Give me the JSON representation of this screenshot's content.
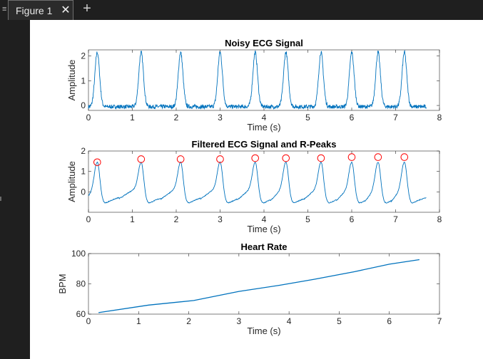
{
  "window": {
    "tab_menu_glyph": "≡",
    "tab_label": "Figure 1",
    "close_glyph": "✕",
    "add_glyph": "+"
  },
  "colors": {
    "line": "#0072bd",
    "peak": "#ff0000",
    "axis": "#262626",
    "background": "#ffffff",
    "chrome": "#1f1f1f"
  },
  "chart_data": [
    {
      "type": "line",
      "title": "Noisy ECG Signal",
      "xlabel": "Time (s)",
      "ylabel": "Amplitude",
      "xlim": [
        0,
        8
      ],
      "ylim": [
        -0.2,
        2.25
      ],
      "xticks": [
        "0",
        "1",
        "2",
        "3",
        "4",
        "5",
        "6",
        "7",
        "8"
      ],
      "yticks": [
        "0",
        "1",
        "2"
      ],
      "xtick_values": [
        0,
        1,
        2,
        3,
        4,
        5,
        6,
        7,
        8
      ],
      "ytick_values": [
        0,
        1,
        2
      ],
      "x_end": 7.7,
      "peak_times": [
        0.2,
        1.2,
        2.1,
        3.0,
        3.8,
        4.5,
        5.3,
        6.0,
        6.6,
        7.2
      ],
      "peak_amplitude": 2.15,
      "baseline": -0.05,
      "series": [
        {
          "values": []
        }
      ]
    },
    {
      "type": "line",
      "title": "Filtered ECG Signal and R-Peaks",
      "xlabel": "Time (s)",
      "ylabel": "Amplitude",
      "xlim": [
        0,
        8
      ],
      "ylim": [
        -1,
        2
      ],
      "xticks": [
        "0",
        "1",
        "2",
        "3",
        "4",
        "5",
        "6",
        "7",
        "8"
      ],
      "yticks": [
        "0",
        "1",
        "2"
      ],
      "xtick_values": [
        0,
        1,
        2,
        3,
        4,
        5,
        6,
        7,
        8
      ],
      "ytick_values": [
        0,
        1,
        2
      ],
      "x_end": 7.7,
      "peak_times": [
        0.2,
        1.2,
        2.1,
        3.0,
        3.8,
        4.5,
        5.3,
        6.0,
        6.6,
        7.2
      ],
      "peak_amplitude": 1.45,
      "marker_values": [
        1.45,
        1.6,
        1.6,
        1.6,
        1.65,
        1.65,
        1.65,
        1.7,
        1.7,
        1.7
      ],
      "series": [
        {
          "values": []
        },
        {
          "values": []
        }
      ]
    },
    {
      "type": "line",
      "title": "Heart Rate",
      "xlabel": "Time (s)",
      "ylabel": "BPM",
      "xlim": [
        0,
        7
      ],
      "ylim": [
        60,
        100
      ],
      "xticks": [
        "0",
        "1",
        "2",
        "3",
        "4",
        "5",
        "6",
        "7"
      ],
      "yticks": [
        "60",
        "80",
        "100"
      ],
      "xtick_values": [
        0,
        1,
        2,
        3,
        4,
        5,
        6,
        7
      ],
      "ytick_values": [
        60,
        80,
        100
      ],
      "series": [
        {
          "x": [
            0.2,
            1.2,
            2.1,
            3.0,
            3.8,
            4.5,
            5.3,
            6.0,
            6.6
          ],
          "values": [
            61,
            66,
            69,
            75,
            79,
            83,
            88,
            93,
            96
          ]
        }
      ]
    }
  ]
}
